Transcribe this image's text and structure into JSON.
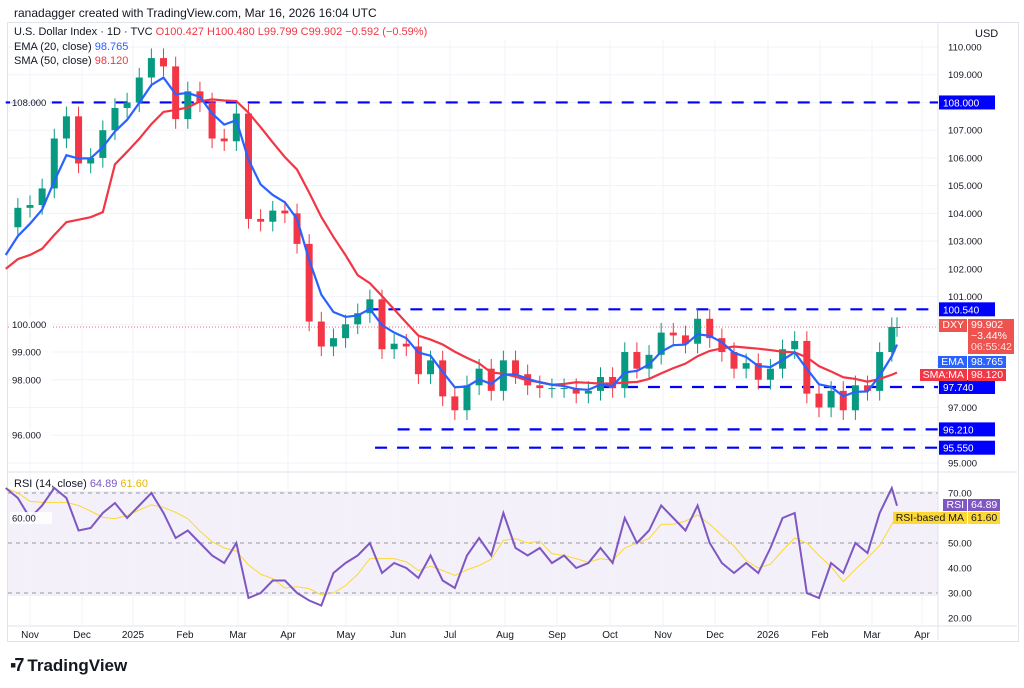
{
  "credit": "ranadagger created with TradingView.com, Mar 16, 2026 16:04 UTC",
  "legend": {
    "symbol": "U.S. Dollar Index · 1D · TVC",
    "open": "O100.427",
    "high": "H100.480",
    "low": "L99.799",
    "close": "C99.902",
    "change": "−0.592 (−0.59%)",
    "ema_label": "EMA (20, close)",
    "ema_value": "98.765",
    "sma_label": "SMA (50, close)",
    "sma_value": "98.120",
    "rsi_label": "RSI (14, close)",
    "rsi_value": "64.89",
    "rsi_ma_value": "61.60"
  },
  "currency": "USD",
  "tags": {
    "dxy": "DXY",
    "price": "99.902",
    "pct": "−3.44%",
    "countdown": "06:55:42",
    "ema": "EMA",
    "ema_val": "98.765",
    "sma": "SMA:MA",
    "sma_val": "98.120",
    "rsi": "RSI",
    "rsi_val": "64.89",
    "rsi_ma": "RSI-based MA",
    "rsi_ma_val": "61.60"
  },
  "colors": {
    "up": "#089981",
    "down": "#f23645",
    "ema": "#2962ff",
    "sma": "#f23645",
    "level": "#0000ff",
    "rsi": "#7e57c2",
    "rsi_ma": "#fdd835"
  },
  "brand": "TradingView",
  "chart_data": [
    {
      "type": "candlestick",
      "title": "U.S. Dollar Index · 1D · TVC",
      "ylim": [
        95,
        110.5
      ],
      "price_ticks": [
        "110.000",
        "109.000",
        "108.000",
        "107.000",
        "106.000",
        "105.000",
        "104.000",
        "103.000",
        "102.000",
        "101.000",
        "100.000",
        "99.000",
        "98.000",
        "97.000",
        "96.000",
        "95.000"
      ],
      "x_ticks": [
        "Nov",
        "Dec",
        "2025",
        "Feb",
        "Mar",
        "Apr",
        "May",
        "Jun",
        "Jul",
        "Aug",
        "Sep",
        "Oct",
        "Nov",
        "Dec",
        "2026",
        "Feb",
        "Mar",
        "Apr"
      ],
      "levels": [
        {
          "value": 108.0,
          "label": "108.000",
          "from": "2024-10-18"
        },
        {
          "value": 100.54,
          "label": "100.540",
          "from": "2025-05-14"
        },
        {
          "value": 97.74,
          "label": "97.740",
          "from": "2025-09-28"
        },
        {
          "value": 96.21,
          "label": "96.210",
          "from": "2025-06-01"
        },
        {
          "value": 95.55,
          "label": "95.550",
          "from": "2025-05-19"
        }
      ],
      "dates": [
        "2024-10-18",
        "2024-10-25",
        "2024-11-01",
        "2024-11-08",
        "2024-11-15",
        "2024-11-22",
        "2024-11-29",
        "2024-12-06",
        "2024-12-13",
        "2024-12-20",
        "2024-12-27",
        "2025-01-03",
        "2025-01-10",
        "2025-01-17",
        "2025-01-24",
        "2025-01-31",
        "2025-02-07",
        "2025-02-14",
        "2025-02-21",
        "2025-02-28",
        "2025-03-07",
        "2025-03-14",
        "2025-03-21",
        "2025-03-28",
        "2025-04-04",
        "2025-04-11",
        "2025-04-18",
        "2025-04-25",
        "2025-05-02",
        "2025-05-09",
        "2025-05-16",
        "2025-05-23",
        "2025-05-30",
        "2025-06-06",
        "2025-06-13",
        "2025-06-20",
        "2025-06-27",
        "2025-07-04",
        "2025-07-11",
        "2025-07-18",
        "2025-07-25",
        "2025-08-01",
        "2025-08-08",
        "2025-08-15",
        "2025-08-22",
        "2025-08-29",
        "2025-09-05",
        "2025-09-12",
        "2025-09-19",
        "2025-09-26",
        "2025-10-03",
        "2025-10-10",
        "2025-10-17",
        "2025-10-24",
        "2025-10-31",
        "2025-11-07",
        "2025-11-14",
        "2025-11-21",
        "2025-11-28",
        "2025-12-05",
        "2025-12-12",
        "2025-12-19",
        "2025-12-26",
        "2026-01-02",
        "2026-01-09",
        "2026-01-16",
        "2026-01-23",
        "2026-01-30",
        "2026-02-06",
        "2026-02-13",
        "2026-02-20",
        "2026-02-27",
        "2026-03-06",
        "2026-03-13",
        "2026-03-16"
      ],
      "close": [
        103.5,
        104.2,
        104.3,
        104.9,
        106.7,
        107.5,
        105.8,
        106.0,
        107.0,
        107.8,
        108.0,
        108.9,
        109.6,
        109.3,
        107.4,
        108.4,
        108.0,
        106.7,
        106.6,
        107.6,
        103.8,
        103.7,
        104.1,
        104.0,
        102.9,
        100.1,
        99.2,
        99.5,
        100.0,
        100.4,
        100.9,
        99.1,
        99.3,
        99.2,
        98.2,
        98.7,
        97.4,
        96.9,
        97.8,
        98.4,
        97.6,
        98.7,
        98.2,
        97.8,
        97.7,
        97.7,
        97.7,
        97.5,
        97.6,
        98.1,
        97.7,
        99.0,
        98.4,
        98.9,
        99.7,
        99.6,
        99.3,
        100.2,
        99.5,
        99.0,
        98.4,
        98.6,
        98.0,
        98.4,
        99.1,
        99.4,
        97.5,
        97.0,
        97.6,
        96.9,
        97.8,
        97.6,
        99.0,
        99.9,
        99.902
      ]
    },
    {
      "type": "line",
      "title": "RSI (14, close)",
      "ylim": [
        18,
        78
      ],
      "ticks": [
        "70.00",
        "60.00",
        "50.00",
        "40.00",
        "30.00",
        "20.00"
      ],
      "rsi": [
        72,
        68,
        60,
        65,
        72,
        68,
        55,
        56,
        62,
        66,
        60,
        65,
        70,
        62,
        52,
        55,
        50,
        45,
        42,
        50,
        28,
        30,
        35,
        35,
        30,
        27,
        25,
        38,
        42,
        45,
        50,
        38,
        42,
        40,
        36,
        45,
        35,
        32,
        45,
        52,
        45,
        62,
        48,
        45,
        48,
        42,
        45,
        40,
        42,
        48,
        42,
        60,
        50,
        55,
        65,
        60,
        55,
        65,
        50,
        42,
        38,
        42,
        38,
        48,
        60,
        62,
        30,
        28,
        42,
        38,
        50,
        46,
        62,
        72,
        64.89
      ]
    }
  ]
}
